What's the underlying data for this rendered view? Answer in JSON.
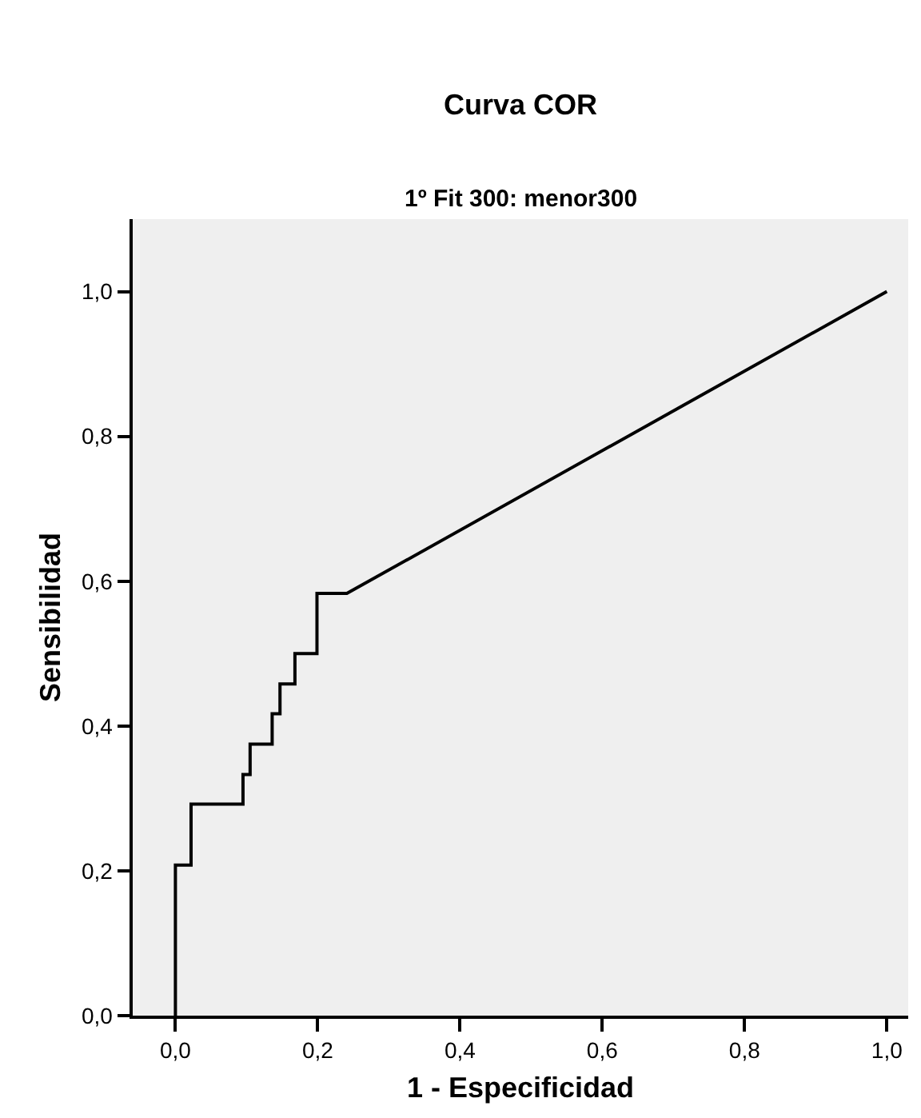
{
  "chart_data": {
    "type": "line",
    "title": "Curva COR",
    "subtitle": "1º Fit 300: menor300",
    "xlabel": "1 - Especificidad",
    "ylabel": "Sensibilidad",
    "x": [
      0,
      0,
      0.022,
      0.022,
      0.095,
      0.095,
      0.105,
      0.105,
      0.136,
      0.136,
      0.147,
      0.147,
      0.168,
      0.168,
      0.199,
      0.199,
      0.241,
      1
    ],
    "series": [
      {
        "color": "#000000",
        "values": [
          0,
          0.208,
          0.208,
          0.292,
          0.292,
          0.333,
          0.333,
          0.375,
          0.375,
          0.417,
          0.417,
          0.458,
          0.458,
          0.5,
          0.5,
          0.583,
          0.583,
          1
        ]
      }
    ],
    "xlim": [
      -0.06,
      1.03
    ],
    "ylim": [
      0,
      1.1
    ],
    "xticks": [
      {
        "value": 0,
        "label": "0,0"
      },
      {
        "value": 0.2,
        "label": "0,2"
      },
      {
        "value": 0.4,
        "label": "0,4"
      },
      {
        "value": 0.6,
        "label": "0,6"
      },
      {
        "value": 0.8,
        "label": "0,8"
      },
      {
        "value": 1,
        "label": "1,0"
      }
    ],
    "yticks": [
      {
        "value": 0,
        "label": "0,0"
      },
      {
        "value": 0.2,
        "label": "0,2"
      },
      {
        "value": 0.4,
        "label": "0,4"
      },
      {
        "value": 0.6,
        "label": "0,6"
      },
      {
        "value": 0.8,
        "label": "0,8"
      },
      {
        "value": 1,
        "label": "1,0"
      }
    ],
    "grid": false,
    "marker": "none",
    "line_style": "solid"
  }
}
